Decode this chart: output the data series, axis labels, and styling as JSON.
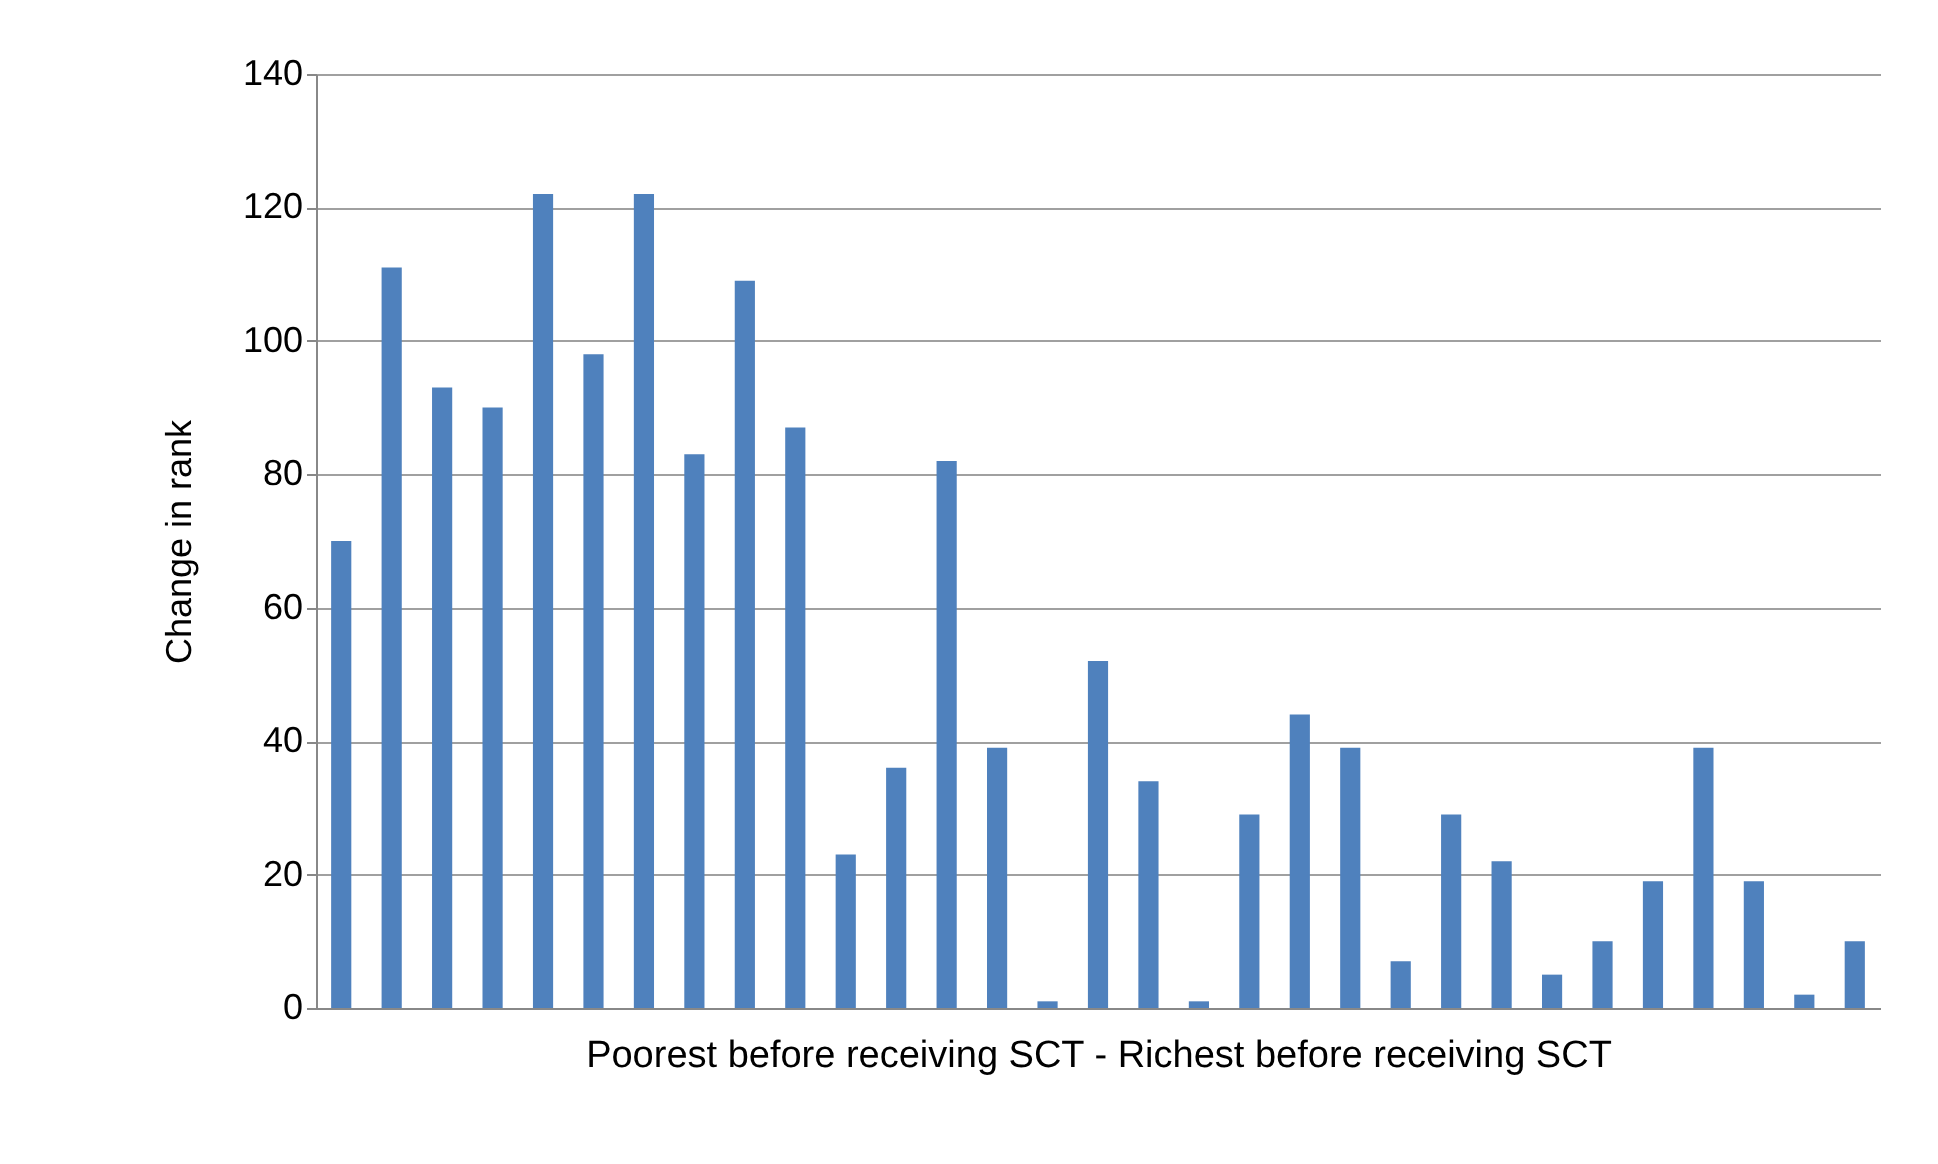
{
  "chart_data": {
    "type": "bar",
    "ylabel": "Change in rank",
    "xlabel": "Poorest before receiving SCT          -          Richest before receiving SCT",
    "categories": [
      null,
      null,
      null,
      null,
      null,
      null,
      null,
      null,
      null,
      null,
      null,
      null,
      null,
      null,
      null,
      null,
      null,
      null,
      null,
      null,
      null,
      null,
      null,
      null,
      null,
      null,
      null,
      null,
      null,
      null,
      null
    ],
    "values": [
      70,
      111,
      93,
      90,
      122,
      98,
      122,
      83,
      109,
      87,
      23,
      36,
      82,
      39,
      1,
      52,
      34,
      1,
      29,
      44,
      39,
      7,
      29,
      22,
      5,
      10,
      19,
      39,
      19,
      2,
      10
    ],
    "color": "#4f81bd",
    "ylim": [
      0,
      140
    ],
    "yticks": [
      0,
      20,
      40,
      60,
      80,
      100,
      120,
      140
    ],
    "grid": "y",
    "tick_labels": "y"
  }
}
